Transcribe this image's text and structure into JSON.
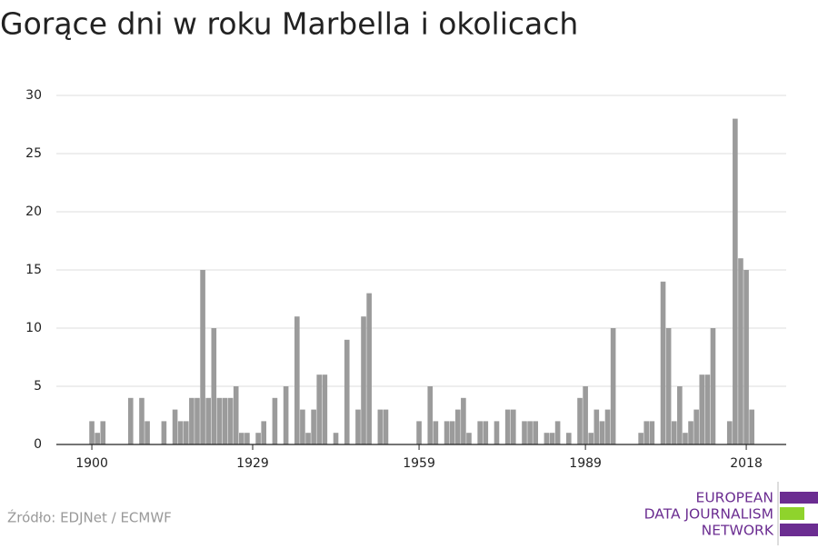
{
  "chart_data": {
    "type": "bar",
    "title": "Gorące dni w roku Marbella i okolicach",
    "source": "Źródło: EDJNet / ECMWF",
    "logo": [
      "EUROPEAN",
      "DATA JOURNALISM",
      "NETWORK"
    ],
    "color": "#9b9b9b",
    "grid": true,
    "x": [
      1900,
      1901,
      1902,
      1903,
      1904,
      1905,
      1906,
      1907,
      1908,
      1909,
      1910,
      1911,
      1912,
      1913,
      1914,
      1915,
      1916,
      1917,
      1918,
      1919,
      1920,
      1921,
      1922,
      1923,
      1924,
      1925,
      1926,
      1927,
      1928,
      1929,
      1930,
      1931,
      1932,
      1933,
      1934,
      1935,
      1936,
      1937,
      1938,
      1939,
      1940,
      1941,
      1942,
      1943,
      1944,
      1945,
      1946,
      1947,
      1948,
      1949,
      1950,
      1951,
      1952,
      1953,
      1954,
      1955,
      1956,
      1957,
      1958,
      1959,
      1960,
      1961,
      1962,
      1963,
      1964,
      1965,
      1966,
      1967,
      1968,
      1969,
      1970,
      1971,
      1972,
      1973,
      1974,
      1975,
      1976,
      1977,
      1978,
      1979,
      1980,
      1981,
      1982,
      1983,
      1984,
      1985,
      1986,
      1987,
      1988,
      1989,
      1990,
      1991,
      1992,
      1993,
      1994,
      1995,
      1996,
      1997,
      1998,
      1999,
      2000,
      2001,
      2002,
      2003,
      2004,
      2005,
      2006,
      2007,
      2008,
      2009,
      2010,
      2011,
      2012,
      2013,
      2014,
      2015,
      2016,
      2017,
      2018,
      2019
    ],
    "values": [
      2,
      1,
      2,
      0,
      0,
      0,
      0,
      4,
      0,
      4,
      2,
      0,
      0,
      2,
      0,
      3,
      2,
      2,
      4,
      4,
      15,
      4,
      10,
      4,
      4,
      4,
      5,
      1,
      1,
      0,
      1,
      2,
      0,
      4,
      0,
      5,
      0,
      11,
      3,
      1,
      3,
      6,
      6,
      0,
      1,
      0,
      9,
      0,
      3,
      11,
      13,
      0,
      3,
      3,
      0,
      0,
      0,
      0,
      0,
      2,
      0,
      5,
      2,
      0,
      2,
      2,
      3,
      4,
      1,
      0,
      2,
      2,
      0,
      2,
      0,
      3,
      3,
      0,
      2,
      2,
      2,
      0,
      1,
      1,
      2,
      0,
      1,
      0,
      4,
      5,
      1,
      3,
      2,
      3,
      10,
      0,
      0,
      0,
      0,
      1,
      2,
      2,
      0,
      14,
      10,
      2,
      5,
      1,
      2,
      3,
      6,
      6,
      10,
      0,
      0,
      2,
      28,
      16,
      15,
      3
    ],
    "xlim": [
      1893.6,
      2025.2
    ],
    "xticks": [
      1900,
      1929,
      1959,
      1989,
      2018
    ],
    "ylim": [
      0,
      30
    ],
    "yticks": [
      0,
      5,
      10,
      15,
      20,
      25,
      30
    ]
  }
}
